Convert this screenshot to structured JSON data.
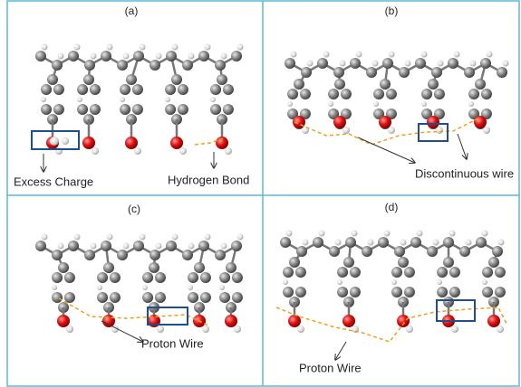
{
  "panels": [
    {
      "label": "(a)",
      "annotations": [
        "Excess Charge",
        "Hydrogen Bond"
      ]
    },
    {
      "label": "(b)",
      "annotations": [
        "Discontinuous wire"
      ]
    },
    {
      "label": "(c)",
      "annotations": [
        "Proton Wire"
      ]
    },
    {
      "label": "(d)",
      "annotations": [
        "Proton Wire"
      ]
    }
  ]
}
